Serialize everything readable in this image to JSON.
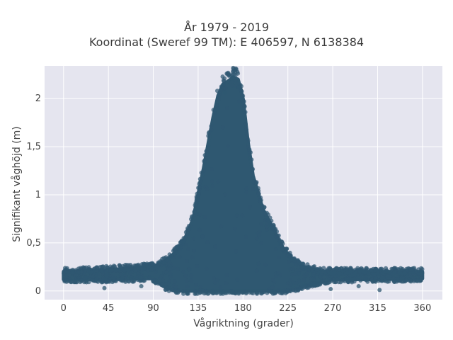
{
  "title_lines": [
    "År 1979 - 2019",
    "Koordinat (Sweref 99 TM): E 406597, N 6138384"
  ],
  "chart_data": {
    "type": "scatter",
    "title": "År 1979 - 2019\nKoordinat (Sweref 99 TM): E 406597, N 6138384",
    "xlabel": "Vågriktning (grader)",
    "ylabel": "Signifikant våghöjd (m)",
    "xlim": [
      -19,
      380
    ],
    "ylim": [
      -0.09,
      2.34
    ],
    "xticks": [
      0,
      45,
      90,
      135,
      180,
      225,
      270,
      315,
      360
    ],
    "xtick_labels": [
      "0",
      "45",
      "90",
      "135",
      "180",
      "225",
      "270",
      "315",
      "360"
    ],
    "yticks": [
      0,
      0.5,
      1,
      1.5,
      2
    ],
    "ytick_labels": [
      "0",
      "0,5",
      "1",
      "1,5",
      "2"
    ],
    "grid": true,
    "marker_color": "#2f5871",
    "background_color": "#e5e5ef",
    "envelope": {
      "x": [
        0,
        45,
        90,
        100,
        110,
        120,
        130,
        140,
        150,
        155,
        160,
        165,
        170,
        175,
        180,
        185,
        190,
        200,
        210,
        220,
        230,
        240,
        260,
        270,
        315,
        360
      ],
      "y_upper": [
        0.2,
        0.22,
        0.25,
        0.3,
        0.38,
        0.5,
        0.75,
        1.25,
        1.8,
        2.03,
        2.15,
        2.18,
        2.22,
        2.2,
        2.0,
        1.55,
        1.2,
        0.85,
        0.65,
        0.45,
        0.32,
        0.25,
        0.2,
        0.2,
        0.2,
        0.2
      ],
      "y_lower": [
        0.12,
        0.12,
        0.13,
        0.05,
        0.01,
        0.0,
        0.0,
        0.0,
        0.0,
        0.0,
        0.0,
        0.0,
        0.0,
        0.0,
        0.0,
        0.0,
        0.0,
        0.0,
        0.0,
        0.0,
        0.02,
        0.05,
        0.1,
        0.12,
        0.12,
        0.13
      ]
    },
    "outliers": [
      {
        "x": 41,
        "y": 0.03
      },
      {
        "x": 78,
        "y": 0.05
      },
      {
        "x": 268,
        "y": 0.02
      },
      {
        "x": 317,
        "y": 0.01
      },
      {
        "x": 23,
        "y": 0.09
      },
      {
        "x": 296,
        "y": 0.05
      },
      {
        "x": 162,
        "y": 2.06
      },
      {
        "x": 170,
        "y": 2.22
      }
    ]
  }
}
